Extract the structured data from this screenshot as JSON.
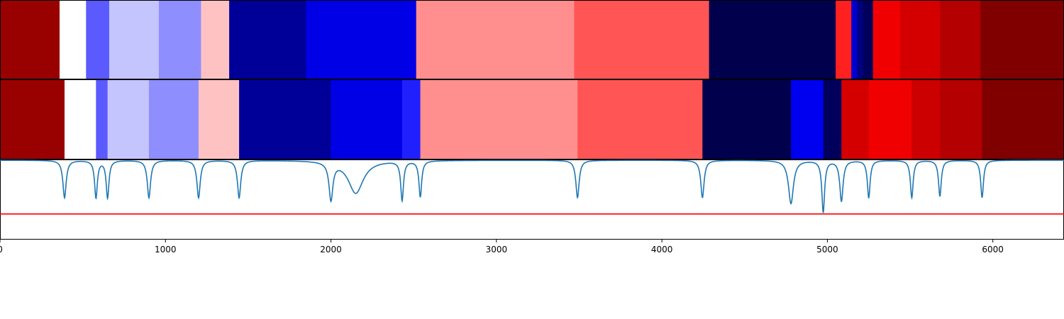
{
  "chart_data": [
    {
      "type": "heatmap",
      "colormap": "seismic",
      "x_range": [
        0,
        6430
      ],
      "segments": [
        {
          "start": 0,
          "end": 360,
          "color": "#990000"
        },
        {
          "start": 360,
          "end": 520,
          "color": "#ffffff"
        },
        {
          "start": 520,
          "end": 660,
          "color": "#5a5aff"
        },
        {
          "start": 660,
          "end": 960,
          "color": "#c4c4ff"
        },
        {
          "start": 960,
          "end": 1215,
          "color": "#8e8eff"
        },
        {
          "start": 1215,
          "end": 1385,
          "color": "#ffc2c2"
        },
        {
          "start": 1385,
          "end": 1850,
          "color": "#000099"
        },
        {
          "start": 1850,
          "end": 2515,
          "color": "#0000e6"
        },
        {
          "start": 2515,
          "end": 3470,
          "color": "#ff8e8e"
        },
        {
          "start": 3470,
          "end": 4285,
          "color": "#ff5555"
        },
        {
          "start": 4285,
          "end": 5050,
          "color": "#00004c"
        },
        {
          "start": 5050,
          "end": 5145,
          "color": "#ff2020"
        },
        {
          "start": 5145,
          "end": 5180,
          "color": "#0000d0"
        },
        {
          "start": 5180,
          "end": 5215,
          "color": "#000080"
        },
        {
          "start": 5215,
          "end": 5275,
          "color": "#00005c"
        },
        {
          "start": 5275,
          "end": 5440,
          "color": "#f00000"
        },
        {
          "start": 5440,
          "end": 5680,
          "color": "#d40000"
        },
        {
          "start": 5680,
          "end": 5925,
          "color": "#b40000"
        },
        {
          "start": 5925,
          "end": 6430,
          "color": "#800000"
        }
      ]
    },
    {
      "type": "heatmap",
      "colormap": "seismic",
      "x_range": [
        0,
        6430
      ],
      "segments": [
        {
          "start": 0,
          "end": 390,
          "color": "#990000"
        },
        {
          "start": 390,
          "end": 580,
          "color": "#ffffff"
        },
        {
          "start": 580,
          "end": 650,
          "color": "#5a5aff"
        },
        {
          "start": 650,
          "end": 900,
          "color": "#c4c4ff"
        },
        {
          "start": 900,
          "end": 1200,
          "color": "#8e8eff"
        },
        {
          "start": 1200,
          "end": 1445,
          "color": "#ffc2c2"
        },
        {
          "start": 1445,
          "end": 2000,
          "color": "#000099"
        },
        {
          "start": 2000,
          "end": 2430,
          "color": "#0000e6"
        },
        {
          "start": 2430,
          "end": 2540,
          "color": "#2020ff"
        },
        {
          "start": 2540,
          "end": 3490,
          "color": "#ff8e8e"
        },
        {
          "start": 3490,
          "end": 4245,
          "color": "#ff5555"
        },
        {
          "start": 4245,
          "end": 4780,
          "color": "#00004c"
        },
        {
          "start": 4780,
          "end": 4975,
          "color": "#0000f0"
        },
        {
          "start": 4975,
          "end": 5085,
          "color": "#00005c"
        },
        {
          "start": 5085,
          "end": 5250,
          "color": "#d40000"
        },
        {
          "start": 5250,
          "end": 5510,
          "color": "#f00000"
        },
        {
          "start": 5510,
          "end": 5680,
          "color": "#cc0000"
        },
        {
          "start": 5680,
          "end": 5935,
          "color": "#b40000"
        },
        {
          "start": 5935,
          "end": 6430,
          "color": "#800000"
        }
      ]
    },
    {
      "type": "line",
      "xlim": [
        0,
        6430
      ],
      "ylim": [
        -0.2,
        1.0
      ],
      "baseline": 1.0,
      "threshold": 0.18,
      "line_color": "#1f77b4",
      "threshold_color": "#ff0000",
      "dips": [
        {
          "x": 390,
          "depth": 0.57,
          "width": 12
        },
        {
          "x": 580,
          "depth": 0.57,
          "width": 10
        },
        {
          "x": 650,
          "depth": 0.57,
          "width": 10
        },
        {
          "x": 900,
          "depth": 0.57,
          "width": 12
        },
        {
          "x": 1200,
          "depth": 0.57,
          "width": 12
        },
        {
          "x": 1445,
          "depth": 0.57,
          "width": 12
        },
        {
          "x": 2000,
          "depth": 0.57,
          "width": 14
        },
        {
          "x": 2150,
          "depth": 0.5,
          "width": 55
        },
        {
          "x": 2430,
          "depth": 0.6,
          "width": 10
        },
        {
          "x": 2540,
          "depth": 0.55,
          "width": 10
        },
        {
          "x": 3490,
          "depth": 0.57,
          "width": 12
        },
        {
          "x": 4245,
          "depth": 0.57,
          "width": 12
        },
        {
          "x": 4780,
          "depth": 0.66,
          "width": 18
        },
        {
          "x": 4975,
          "depth": 0.79,
          "width": 10
        },
        {
          "x": 5085,
          "depth": 0.62,
          "width": 12
        },
        {
          "x": 5250,
          "depth": 0.57,
          "width": 10
        },
        {
          "x": 5510,
          "depth": 0.57,
          "width": 10
        },
        {
          "x": 5680,
          "depth": 0.55,
          "width": 10
        },
        {
          "x": 5935,
          "depth": 0.57,
          "width": 10
        }
      ],
      "xticks": [
        0,
        1000,
        2000,
        3000,
        4000,
        5000,
        6000
      ],
      "xtick_labels": [
        "0",
        "1000",
        "2000",
        "3000",
        "4000",
        "5000",
        "6000"
      ]
    }
  ]
}
